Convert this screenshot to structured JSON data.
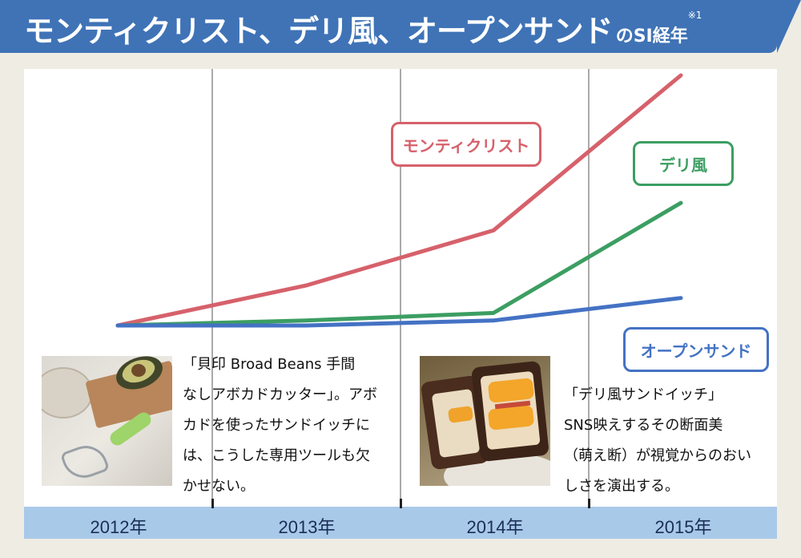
{
  "title": {
    "main": "モンティクリスト、デリ風、オープンサンド",
    "sub": "のSI経年",
    "note_mark": "※1"
  },
  "chart_data": {
    "type": "line",
    "x": [
      "2012年",
      "2013年",
      "2014年",
      "2015年"
    ],
    "series": [
      {
        "name": "モンティクリスト",
        "color": "#d6616b",
        "values": [
          0,
          0.16,
          0.38,
          1.0
        ]
      },
      {
        "name": "デリ風",
        "color": "#3c9e62",
        "values": [
          0,
          0.02,
          0.05,
          0.49
        ]
      },
      {
        "name": "オープンサンド",
        "color": "#4472c4",
        "values": [
          0,
          0.0,
          0.02,
          0.11
        ]
      }
    ]
  },
  "captions": {
    "left": [
      "「貝印 Broad Beans 手間",
      "なしアボカドカッター」。アボ",
      "カドを使ったサンドイッチに",
      "は、こうした専用ツールも欠",
      "かせない。"
    ],
    "right": [
      "「デリ風サンドイッチ」",
      "SNS映えするその断面美",
      "（萌え断）が視覚からのおい",
      "しさを演出する。"
    ]
  },
  "photos": {
    "left": "avocado-cutter-photo",
    "right": "deli-sandwich-photo"
  }
}
